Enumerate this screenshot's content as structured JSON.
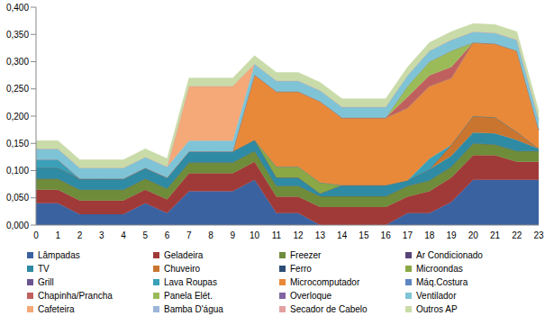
{
  "chart_data": {
    "type": "area",
    "stacked": true,
    "grid": false,
    "legend": "bottom",
    "categories": [
      "0",
      "1",
      "2",
      "3",
      "4",
      "5",
      "6",
      "7",
      "8",
      "9",
      "10",
      "11",
      "12",
      "13",
      "14",
      "15",
      "16",
      "17",
      "18",
      "19",
      "20",
      "21",
      "22",
      "23"
    ],
    "ylim": [
      0,
      0.4
    ],
    "yticks": [
      {
        "value": 0,
        "label": "0,000"
      },
      {
        "value": 0.05,
        "label": "0,050"
      },
      {
        "value": 0.1,
        "label": "0,100"
      },
      {
        "value": 0.15,
        "label": "0,150"
      },
      {
        "value": 0.2,
        "label": "0,200"
      },
      {
        "value": 0.25,
        "label": "0,250"
      },
      {
        "value": 0.3,
        "label": "0,300"
      },
      {
        "value": 0.35,
        "label": "0,350"
      },
      {
        "value": 0.4,
        "label": "0,400"
      }
    ],
    "series": [
      {
        "name": "Lâmpadas",
        "color": "#3A62A0",
        "values": [
          0.04,
          0.04,
          0.02,
          0.02,
          0.02,
          0.04,
          0.022,
          0.062,
          0.062,
          0.062,
          0.083,
          0.022,
          0.022,
          0,
          0,
          0,
          0,
          0.022,
          0.022,
          0.042,
          0.083,
          0.083,
          0.083,
          0.083
        ]
      },
      {
        "name": "Geladeira",
        "color": "#A03A38",
        "values": [
          0.025,
          0.025,
          0.025,
          0.025,
          0.025,
          0.025,
          0.025,
          0.033,
          0.033,
          0.033,
          0.033,
          0.03,
          0.03,
          0.033,
          0.033,
          0.033,
          0.033,
          0.03,
          0.04,
          0.045,
          0.045,
          0.045,
          0.033,
          0.033
        ]
      },
      {
        "name": "Freezer",
        "color": "#6E8C3A",
        "values": [
          0.02,
          0.02,
          0.02,
          0.02,
          0.02,
          0.02,
          0.02,
          0.02,
          0.02,
          0.02,
          0.02,
          0.02,
          0.02,
          0.02,
          0.02,
          0.02,
          0.02,
          0.02,
          0.02,
          0.02,
          0.022,
          0.02,
          0.02,
          0.02
        ]
      },
      {
        "name": "Ar Condicionado",
        "color": "#584478",
        "values": [
          0,
          0,
          0,
          0,
          0,
          0,
          0,
          0,
          0,
          0,
          0,
          0,
          0,
          0,
          0,
          0,
          0,
          0,
          0,
          0,
          0,
          0,
          0,
          0
        ]
      },
      {
        "name": "TV",
        "color": "#2E8BA3",
        "values": [
          0.02,
          0.02,
          0.02,
          0.02,
          0.02,
          0.02,
          0.02,
          0.02,
          0.02,
          0.02,
          0.02,
          0.015,
          0.015,
          0.005,
          0.02,
          0.02,
          0.02,
          0.01,
          0.02,
          0.02,
          0.02,
          0.02,
          0.02,
          0.004
        ]
      },
      {
        "name": "Chuveiro",
        "color": "#C9752F",
        "values": [
          0,
          0,
          0,
          0,
          0,
          0,
          0,
          0,
          0,
          0,
          0,
          0,
          0,
          0,
          0,
          0,
          0,
          0,
          0,
          0.02,
          0.03,
          0.03,
          0.015,
          0
        ]
      },
      {
        "name": "Ferro",
        "color": "#2C4D75",
        "values": [
          0,
          0,
          0,
          0,
          0,
          0,
          0,
          0,
          0,
          0,
          0,
          0,
          0,
          0,
          0,
          0,
          0,
          0,
          0,
          0,
          0,
          0,
          0,
          0
        ]
      },
      {
        "name": "Microondas",
        "color": "#8AA845",
        "values": [
          0,
          0,
          0,
          0,
          0,
          0,
          0,
          0,
          0,
          0,
          0,
          0.02,
          0.02,
          0.02,
          0,
          0,
          0,
          0,
          0,
          0,
          0,
          0,
          0,
          0
        ]
      },
      {
        "name": "Grill",
        "color": "#6B5590",
        "values": [
          0,
          0,
          0,
          0,
          0,
          0,
          0,
          0,
          0,
          0,
          0,
          0,
          0,
          0,
          0,
          0,
          0,
          0,
          0,
          0,
          0,
          0,
          0,
          0
        ]
      },
      {
        "name": "Lava Roupas",
        "color": "#3AA0B8",
        "values": [
          0.015,
          0.015,
          0,
          0,
          0,
          0,
          0,
          0,
          0,
          0,
          0,
          0,
          0,
          0,
          0,
          0,
          0,
          0,
          0.02,
          0,
          0,
          0,
          0,
          0
        ]
      },
      {
        "name": "Microcomputador",
        "color": "#E8893A",
        "values": [
          0,
          0,
          0,
          0,
          0,
          0,
          0,
          0,
          0,
          0,
          0.12,
          0.138,
          0.138,
          0.149,
          0.124,
          0.124,
          0.124,
          0.133,
          0.133,
          0.123,
          0.135,
          0.135,
          0.149,
          0.035
        ]
      },
      {
        "name": "Máq.Costura",
        "color": "#5B86C0",
        "values": [
          0,
          0,
          0,
          0,
          0,
          0,
          0,
          0,
          0,
          0,
          0,
          0,
          0,
          0,
          0,
          0,
          0,
          0,
          0,
          0,
          0,
          0,
          0,
          0
        ]
      },
      {
        "name": "Chapinha/Prancha",
        "color": "#C0605E",
        "values": [
          0,
          0,
          0,
          0,
          0,
          0,
          0,
          0,
          0,
          0,
          0,
          0,
          0,
          0,
          0,
          0,
          0,
          0.02,
          0.02,
          0.02,
          0,
          0,
          0,
          0
        ]
      },
      {
        "name": "Panela Elét.",
        "color": "#9BBB59",
        "values": [
          0,
          0,
          0,
          0,
          0,
          0,
          0,
          0,
          0,
          0,
          0,
          0,
          0,
          0,
          0,
          0,
          0,
          0.02,
          0.025,
          0.03,
          0,
          0,
          0,
          0
        ]
      },
      {
        "name": "Overloque",
        "color": "#8064A2",
        "values": [
          0,
          0,
          0,
          0,
          0,
          0,
          0,
          0,
          0,
          0,
          0,
          0,
          0,
          0,
          0,
          0,
          0,
          0,
          0,
          0,
          0,
          0,
          0,
          0
        ]
      },
      {
        "name": "Ventilador",
        "color": "#7FC4D6",
        "values": [
          0.02,
          0.02,
          0.02,
          0.02,
          0.02,
          0.02,
          0.02,
          0.02,
          0.02,
          0.02,
          0.02,
          0.02,
          0.02,
          0.02,
          0.02,
          0.02,
          0.02,
          0.02,
          0.02,
          0.02,
          0.02,
          0.02,
          0.02,
          0.02
        ]
      },
      {
        "name": "Cafeteira",
        "color": "#F5A878",
        "values": [
          0,
          0,
          0,
          0,
          0,
          0,
          0,
          0.1,
          0.1,
          0.1,
          0,
          0,
          0,
          0,
          0,
          0,
          0,
          0,
          0,
          0,
          0,
          0,
          0,
          0
        ]
      },
      {
        "name": "Bamba D'água",
        "color": "#9CB6D8",
        "values": [
          0,
          0,
          0,
          0,
          0,
          0,
          0,
          0,
          0,
          0,
          0,
          0,
          0,
          0,
          0,
          0,
          0,
          0,
          0,
          0,
          0,
          0,
          0,
          0
        ]
      },
      {
        "name": "Secador de Cabelo",
        "color": "#E3A0A0",
        "values": [
          0,
          0,
          0,
          0,
          0,
          0,
          0,
          0,
          0,
          0,
          0,
          0,
          0,
          0,
          0,
          0,
          0,
          0,
          0,
          0,
          0,
          0,
          0,
          0
        ]
      },
      {
        "name": "Outros AP",
        "color": "#C9DBA8",
        "values": [
          0.015,
          0.015,
          0.015,
          0.015,
          0.015,
          0.015,
          0.015,
          0.015,
          0.015,
          0.015,
          0.015,
          0.015,
          0.015,
          0.015,
          0.015,
          0.015,
          0.015,
          0.015,
          0.015,
          0.015,
          0.015,
          0.015,
          0.015,
          0.015
        ]
      }
    ]
  }
}
